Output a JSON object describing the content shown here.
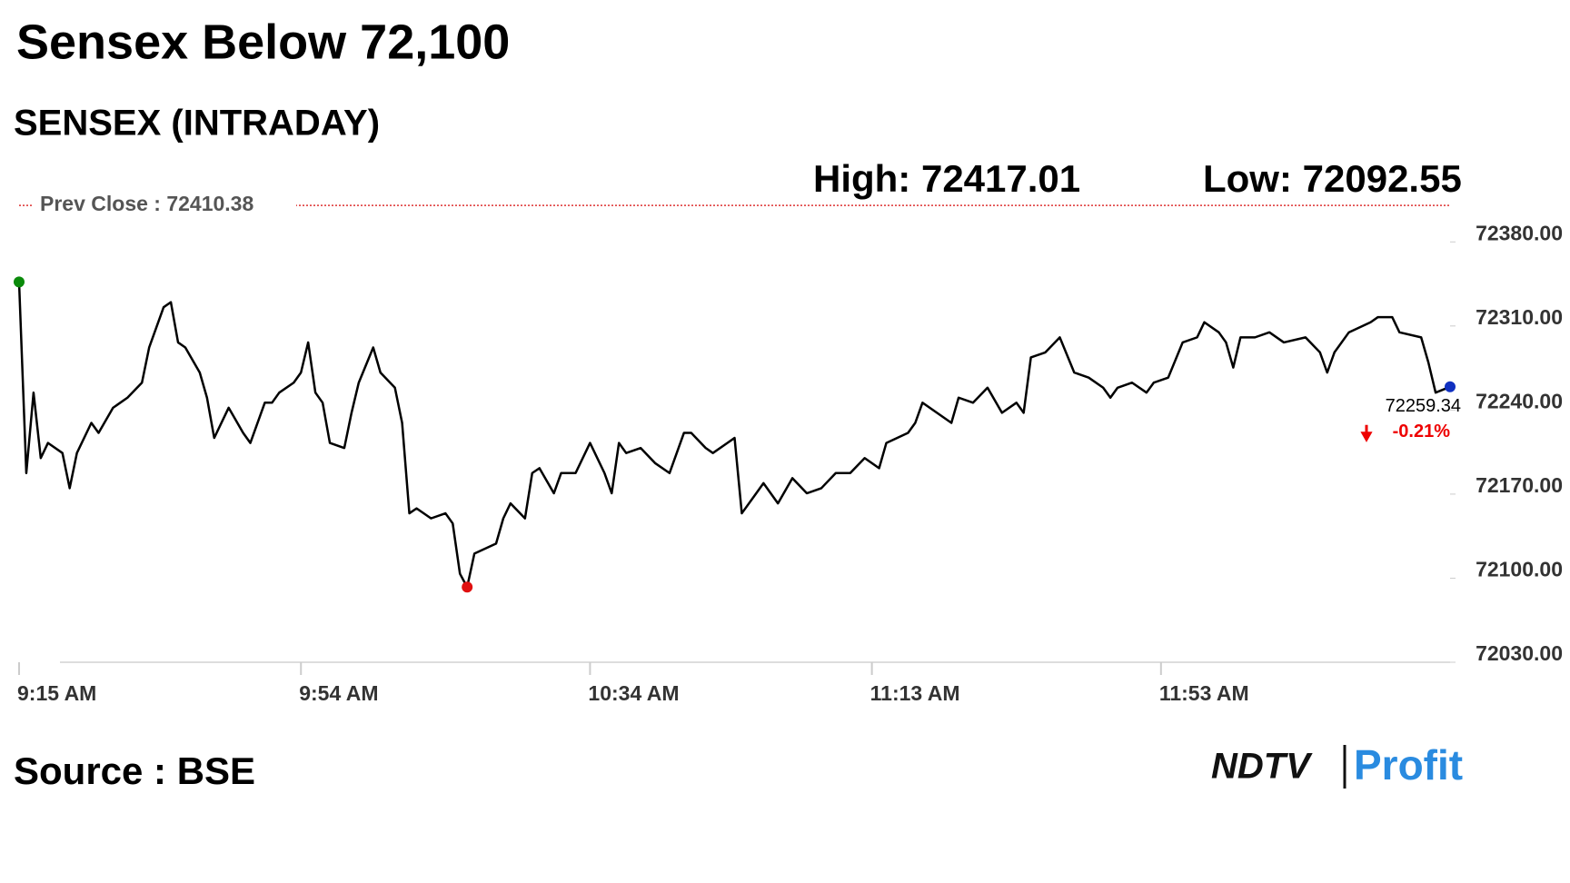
{
  "chart_data": {
    "type": "line",
    "title": "Sensex Below 72,100",
    "subtitle": "SENSEX (INTRADAY)",
    "annotations": [
      "High: 72417.01",
      "Low: 72092.55"
    ],
    "reference_line": {
      "value": 72410.38,
      "label": "Prev Close : 72410.38",
      "color": "#d33"
    },
    "change_label": "-0.21%",
    "xlim": [
      555,
      753
    ],
    "xticks": [
      {
        "value": 555,
        "label": "9:15 AM"
      },
      {
        "value": 594,
        "label": "9:54 AM"
      },
      {
        "value": 634,
        "label": "10:34 AM"
      },
      {
        "value": 673,
        "label": "11:13 AM"
      },
      {
        "value": 713,
        "label": "11:53 AM"
      }
    ],
    "ylim": [
      72030,
      72415
    ],
    "yticks": [
      {
        "value": 72030,
        "label": "72030.00"
      },
      {
        "value": 72100,
        "label": "72100.00"
      },
      {
        "value": 72170,
        "label": "72170.00"
      },
      {
        "value": 72240,
        "label": "72240.00"
      },
      {
        "value": 72310,
        "label": "72310.00"
      },
      {
        "value": 72380,
        "label": "72380.00"
      }
    ],
    "x": [
      555,
      556,
      557,
      558,
      559,
      561,
      562,
      563,
      565,
      566,
      568,
      569,
      570,
      572,
      573,
      575,
      576,
      577,
      578,
      580,
      581,
      582,
      584,
      586,
      587,
      589,
      590,
      591,
      593,
      594,
      595,
      596,
      597,
      598,
      600,
      601,
      602,
      604,
      605,
      607,
      608,
      609,
      610,
      612,
      614,
      615,
      616,
      617,
      618,
      621,
      622,
      623,
      625,
      626,
      627,
      629,
      630,
      632,
      634,
      636,
      637,
      638,
      639,
      641,
      643,
      645,
      647,
      648,
      650,
      651,
      653,
      654,
      655,
      657,
      658,
      660,
      662,
      664,
      666,
      668,
      670,
      672,
      674,
      675,
      678,
      679,
      680,
      682,
      684,
      685,
      687,
      689,
      691,
      693,
      694,
      695,
      697,
      699,
      701,
      703,
      705,
      706,
      707,
      709,
      711,
      712,
      714,
      716,
      718,
      719,
      721,
      722,
      723,
      724,
      726,
      728,
      730,
      733,
      735,
      736,
      737,
      739,
      742,
      743,
      745,
      746,
      749,
      750,
      751,
      753
    ],
    "series": [
      {
        "name": "SENSEX",
        "color": "#000000",
        "values": [
          72346.6,
          72187.5,
          72254.5,
          72200.0,
          72212.6,
          72204.2,
          72174.9,
          72204.2,
          72229.3,
          72221.0,
          72241.9,
          72246.1,
          72250.3,
          72262.8,
          72292.1,
          72325.6,
          72329.8,
          72296.3,
          72292.1,
          72271.2,
          72250.3,
          72216.8,
          72241.9,
          72221.0,
          72212.6,
          72246.1,
          72246.1,
          72254.5,
          72262.8,
          72271.2,
          72296.3,
          72254.5,
          72246.1,
          72212.6,
          72208.4,
          72237.7,
          72262.8,
          72292.1,
          72271.2,
          72258.6,
          72229.3,
          72154.0,
          72158.1,
          72149.8,
          72154.0,
          72145.6,
          72103.7,
          72092.55,
          72120.5,
          72128.8,
          72149.8,
          72162.3,
          72149.8,
          72187.5,
          72191.6,
          72170.7,
          72187.5,
          72187.5,
          72212.6,
          72187.5,
          72170.7,
          72212.6,
          72204.2,
          72208.4,
          72195.8,
          72187.5,
          72221.0,
          72221.0,
          72208.4,
          72204.2,
          72212.6,
          72216.8,
          72154.0,
          72170.7,
          72179.1,
          72162.3,
          72183.3,
          72170.7,
          72174.9,
          72187.5,
          72187.5,
          72200.0,
          72191.6,
          72212.6,
          72221.0,
          72229.3,
          72246.1,
          72237.7,
          72229.3,
          72250.3,
          72246.1,
          72258.6,
          72237.7,
          72246.1,
          72237.7,
          72283.8,
          72288.0,
          72300.5,
          72271.2,
          72267.0,
          72258.6,
          72250.3,
          72258.6,
          72262.8,
          72254.5,
          72262.8,
          72267.0,
          72296.3,
          72300.5,
          72313.1,
          72304.7,
          72296.3,
          72275.4,
          72300.5,
          72300.5,
          72304.7,
          72296.3,
          72300.5,
          72288.0,
          72271.2,
          72288.0,
          72304.7,
          72313.1,
          72317.3,
          72317.3,
          72304.7,
          72300.5,
          72279.6,
          72254.5,
          72259.34
        ]
      }
    ],
    "start_color": "#0a8a0a",
    "low_color": "#e01010",
    "end_color": "#1030c0"
  },
  "footer": {
    "source": "Source : BSE",
    "logo_brand": "NDTV",
    "logo_product": "Profit"
  }
}
